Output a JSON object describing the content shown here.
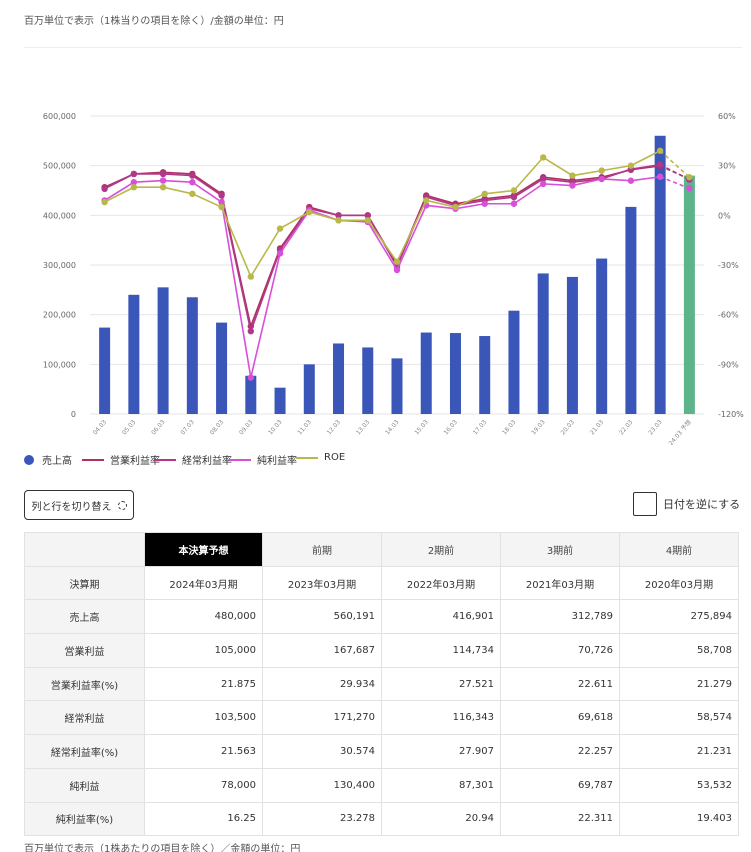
{
  "notes": {
    "top": "百万単位で表示（1株当りの項目を除く）/金額の単位：円",
    "bottom": "百万単位で表示（1株あたりの項目を除く）／金額の単位：円"
  },
  "chart_data": {
    "type": "bar",
    "categories": [
      "04.03",
      "05.03",
      "06.03",
      "07.03",
      "08.03",
      "09.03",
      "10.03",
      "11.03",
      "12.03",
      "13.03",
      "14.03",
      "15.03",
      "16.03",
      "17.03",
      "18.03",
      "19.03",
      "20.03",
      "21.03",
      "22.03",
      "23.03",
      "24.03 予想"
    ],
    "y_left": {
      "min": 0,
      "max": 600000,
      "ticks": [
        "0",
        "100,000",
        "200,000",
        "300,000",
        "400,000",
        "500,000",
        "600,000"
      ]
    },
    "y_right": {
      "min": -120,
      "max": 60,
      "ticks": [
        "-120%",
        "-90%",
        "-60%",
        "-30%",
        "0%",
        "30%",
        "60%"
      ]
    },
    "grid": true,
    "legend_position": "bottom-left",
    "bar_series": {
      "name": "売上高",
      "color": "#3a56b8",
      "forecast_color": "#5cb58a",
      "values": [
        174000,
        240000,
        255000,
        235000,
        184000,
        77000,
        53000,
        100000,
        142000,
        134000,
        112000,
        164000,
        163000,
        157000,
        208000,
        283000,
        276000,
        313000,
        417000,
        560191,
        480000
      ]
    },
    "line_series": [
      {
        "name": "営業利益率",
        "color": "#b03060",
        "values": [
          17,
          25,
          26,
          25,
          13,
          -67,
          -20,
          5,
          0,
          0,
          -30,
          12,
          7,
          10,
          12,
          23,
          21,
          23,
          27.5,
          29.9,
          21.9
        ]
      },
      {
        "name": "経常利益率",
        "color": "#b0388a",
        "values": [
          16,
          25,
          25,
          24,
          12,
          -70,
          -21,
          4,
          0,
          0,
          -31,
          11,
          6,
          9,
          11,
          22,
          20,
          22,
          27.9,
          30.6,
          21.6
        ]
      },
      {
        "name": "純利益率",
        "color": "#d84fd8",
        "values": [
          9,
          20,
          21,
          20,
          8,
          -98,
          -23,
          3,
          -3,
          -4,
          -33,
          6,
          4,
          7,
          7,
          19,
          18,
          22,
          20.9,
          23.3,
          16.3
        ]
      },
      {
        "name": "ROE",
        "color": "#b9b84a",
        "values": [
          8,
          17,
          17,
          13,
          5,
          -37,
          -8,
          2,
          -3,
          -3,
          -28,
          9,
          5,
          13,
          15,
          35,
          24,
          27,
          30,
          39,
          23
        ]
      }
    ]
  },
  "toggle_button": {
    "label": "列と行を切り替え"
  },
  "reverse_dates": {
    "label": "日付を逆にする"
  },
  "table": {
    "headers": [
      "本決算予想",
      "前期",
      "2期前",
      "3期前",
      "4期前"
    ],
    "rows": [
      {
        "label": "決算期",
        "values": [
          "2024年03月期",
          "2023年03月期",
          "2022年03月期",
          "2021年03月期",
          "2020年03月期"
        ]
      },
      {
        "label": "売上高",
        "values": [
          "480,000",
          "560,191",
          "416,901",
          "312,789",
          "275,894"
        ]
      },
      {
        "label": "営業利益",
        "values": [
          "105,000",
          "167,687",
          "114,734",
          "70,726",
          "58,708"
        ]
      },
      {
        "label": "営業利益率(%)",
        "values": [
          "21.875",
          "29.934",
          "27.521",
          "22.611",
          "21.279"
        ]
      },
      {
        "label": "経常利益",
        "values": [
          "103,500",
          "171,270",
          "116,343",
          "69,618",
          "58,574"
        ]
      },
      {
        "label": "経常利益率(%)",
        "values": [
          "21.563",
          "30.574",
          "27.907",
          "22.257",
          "21.231"
        ]
      },
      {
        "label": "純利益",
        "values": [
          "78,000",
          "130,400",
          "87,301",
          "69,787",
          "53,532"
        ]
      },
      {
        "label": "純利益率(%)",
        "values": [
          "16.25",
          "23.278",
          "20.94",
          "22.311",
          "19.403"
        ]
      }
    ]
  }
}
